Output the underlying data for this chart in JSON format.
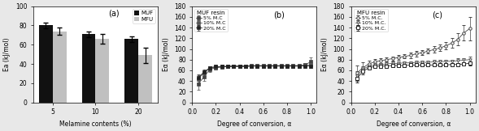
{
  "panel_a": {
    "categories": [
      5,
      10,
      20
    ],
    "muf_values": [
      80,
      71,
      66
    ],
    "mfu_values": [
      74,
      66,
      49
    ],
    "muf_errors": [
      3,
      3,
      3
    ],
    "mfu_errors": [
      4,
      5,
      8
    ],
    "ylabel": "Ea (kJ/mol)",
    "xlabel": "Melamine contents (%)",
    "ylim": [
      0,
      100
    ],
    "yticks": [
      0,
      20,
      40,
      60,
      80,
      100
    ],
    "label": "(a)",
    "legend_labels": [
      "MUF",
      "MFU"
    ],
    "bar_colors": [
      "#111111",
      "#c0c0c0"
    ]
  },
  "panel_b": {
    "alpha": [
      0.05,
      0.1,
      0.15,
      0.2,
      0.25,
      0.3,
      0.35,
      0.4,
      0.45,
      0.5,
      0.55,
      0.6,
      0.65,
      0.7,
      0.75,
      0.8,
      0.85,
      0.9,
      0.95,
      1.0
    ],
    "s5_values": [
      34,
      48,
      62,
      65,
      66,
      67,
      67,
      67,
      67,
      68,
      68,
      68,
      68,
      68,
      68,
      68,
      68,
      68,
      70,
      76
    ],
    "s10_values": [
      44,
      55,
      64,
      66,
      67,
      68,
      68,
      68,
      68,
      69,
      69,
      69,
      69,
      69,
      69,
      69,
      69,
      69,
      70,
      70
    ],
    "s20_values": [
      46,
      57,
      65,
      67,
      67,
      67,
      68,
      68,
      68,
      68,
      68,
      68,
      68,
      68,
      68,
      68,
      68,
      68,
      68,
      68
    ],
    "s5_errors": [
      10,
      7,
      5,
      4,
      3,
      3,
      3,
      3,
      3,
      3,
      3,
      3,
      3,
      3,
      3,
      3,
      3,
      3,
      4,
      8
    ],
    "s10_errors": [
      7,
      5,
      4,
      3,
      3,
      3,
      3,
      3,
      3,
      3,
      3,
      3,
      3,
      3,
      3,
      3,
      3,
      3,
      3,
      5
    ],
    "s20_errors": [
      6,
      4,
      3,
      3,
      3,
      3,
      3,
      3,
      3,
      3,
      3,
      3,
      3,
      3,
      3,
      3,
      3,
      3,
      3,
      4
    ],
    "ylabel": "Eα (kJ/mol)",
    "xlabel": "Degree of conversion, α",
    "ylim": [
      0,
      180
    ],
    "yticks": [
      0,
      20,
      40,
      60,
      80,
      100,
      120,
      140,
      160,
      180
    ],
    "label": "(b)",
    "title": "MUF resin",
    "legend_labels": [
      "5% M.C",
      "10% M.C",
      "20% M.C"
    ],
    "markers": [
      "s",
      "v",
      "s"
    ],
    "colors": [
      "#444444",
      "#555555",
      "#222222"
    ]
  },
  "panel_c": {
    "alpha": [
      0.05,
      0.1,
      0.15,
      0.2,
      0.25,
      0.3,
      0.35,
      0.4,
      0.45,
      0.5,
      0.55,
      0.6,
      0.65,
      0.7,
      0.75,
      0.8,
      0.85,
      0.9,
      0.95,
      1.0
    ],
    "s5_values": [
      55,
      65,
      72,
      76,
      78,
      80,
      82,
      84,
      86,
      88,
      91,
      93,
      96,
      99,
      102,
      106,
      111,
      118,
      130,
      138
    ],
    "s10_values": [
      50,
      62,
      68,
      70,
      71,
      72,
      73,
      73,
      74,
      74,
      75,
      75,
      75,
      76,
      76,
      77,
      77,
      78,
      79,
      80
    ],
    "s20_values": [
      45,
      58,
      65,
      67,
      68,
      68,
      69,
      69,
      69,
      70,
      70,
      70,
      70,
      70,
      70,
      70,
      71,
      71,
      72,
      73
    ],
    "s5_errors": [
      14,
      10,
      6,
      5,
      4,
      4,
      4,
      4,
      4,
      5,
      5,
      5,
      5,
      6,
      6,
      7,
      9,
      11,
      14,
      22
    ],
    "s10_errors": [
      9,
      6,
      4,
      3,
      3,
      3,
      3,
      3,
      3,
      3,
      3,
      3,
      3,
      3,
      3,
      3,
      3,
      4,
      4,
      6
    ],
    "s20_errors": [
      7,
      5,
      4,
      3,
      3,
      3,
      3,
      3,
      3,
      3,
      3,
      3,
      3,
      3,
      3,
      3,
      3,
      3,
      3,
      4
    ],
    "ylabel": "Eα (kJ/mol)",
    "xlabel": "Degree of conversion, α",
    "ylim": [
      0,
      180
    ],
    "yticks": [
      0,
      20,
      40,
      60,
      80,
      100,
      120,
      140,
      160,
      180
    ],
    "label": "(c)",
    "title": "MFU resin",
    "legend_labels": [
      "5% M.C.",
      "10% M.C.",
      "20% M.C."
    ],
    "markers": [
      "o",
      "v",
      "s"
    ],
    "colors": [
      "#444444",
      "#555555",
      "#222222"
    ]
  },
  "figure_bg": "#e8e8e8",
  "axes_bg": "#ffffff"
}
